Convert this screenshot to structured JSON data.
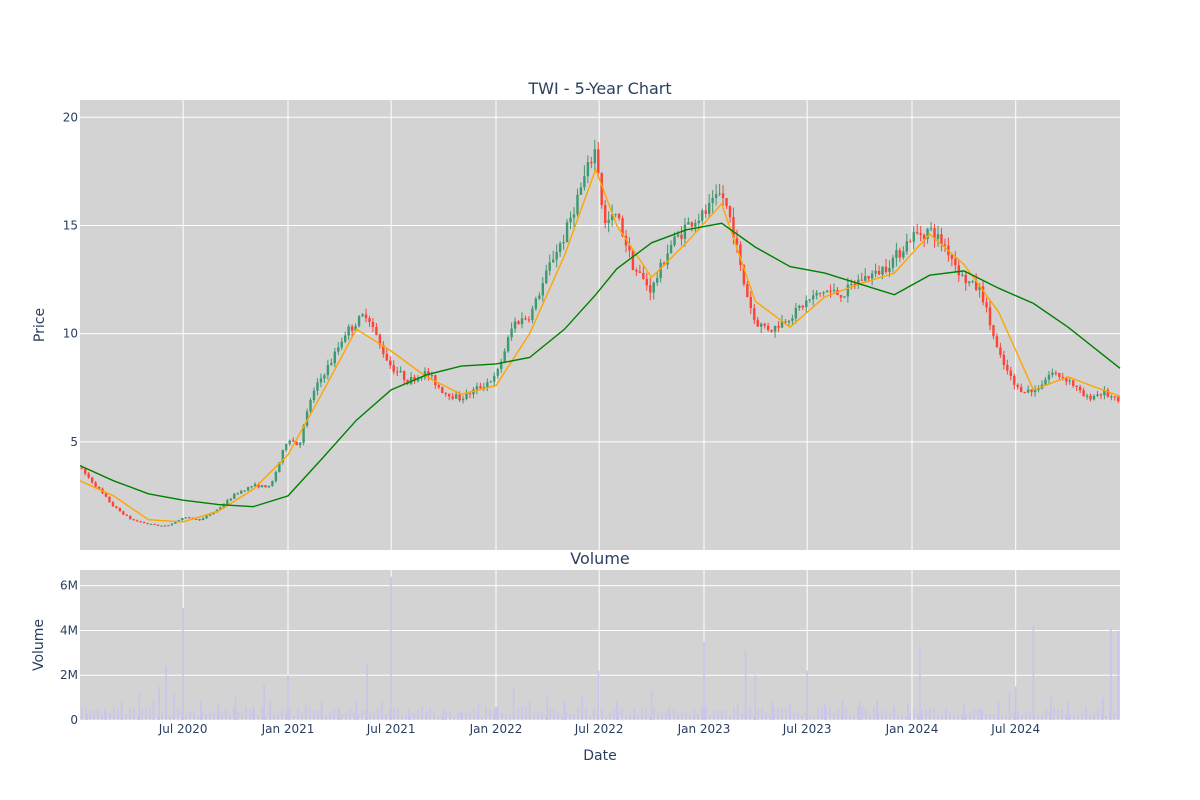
{
  "chart_data": [
    {
      "type": "candlestick",
      "title": "TWI - 5-Year Chart",
      "ylabel": "Price",
      "xlabel": "",
      "ylim": [
        0,
        20.8
      ],
      "y_ticks": [
        5,
        10,
        15,
        20
      ],
      "x_range": [
        "2020-01-02",
        "2024-12-31"
      ],
      "grid": true,
      "plot_background": "#d3d3d3",
      "colors": {
        "increasing": "#3d9970",
        "decreasing": "#ff4136",
        "ma_short": "#ffa500",
        "ma_long": "#008000"
      },
      "series": [
        {
          "name": "price",
          "x": [
            "2020-01-02",
            "2020-02-01",
            "2020-03-01",
            "2020-04-01",
            "2020-05-01",
            "2020-06-01",
            "2020-07-01",
            "2020-08-01",
            "2020-09-01",
            "2020-10-01",
            "2020-11-01",
            "2020-12-01",
            "2021-01-01",
            "2021-01-20",
            "2021-02-10",
            "2021-03-01",
            "2021-03-20",
            "2021-04-10",
            "2021-05-01",
            "2021-05-20",
            "2021-06-10",
            "2021-07-01",
            "2021-08-01",
            "2021-09-01",
            "2021-10-01",
            "2021-11-01",
            "2021-12-01",
            "2022-01-01",
            "2022-02-01",
            "2022-03-01",
            "2022-03-20",
            "2022-04-10",
            "2022-05-01",
            "2022-05-20",
            "2022-06-10",
            "2022-06-25",
            "2022-07-10",
            "2022-08-01",
            "2022-09-01",
            "2022-10-01",
            "2022-11-01",
            "2022-12-01",
            "2023-01-01",
            "2023-02-01",
            "2023-02-20",
            "2023-03-10",
            "2023-04-01",
            "2023-05-01",
            "2023-06-01",
            "2023-07-01",
            "2023-08-01",
            "2023-09-01",
            "2023-10-01",
            "2023-11-01",
            "2023-12-01",
            "2024-01-01",
            "2024-02-01",
            "2024-03-01",
            "2024-04-01",
            "2024-05-01",
            "2024-06-01",
            "2024-07-01",
            "2024-08-01",
            "2024-09-01",
            "2024-10-01",
            "2024-11-01",
            "2024-12-01",
            "2024-12-31"
          ],
          "close": [
            3.8,
            2.9,
            2.0,
            1.4,
            1.2,
            1.1,
            1.5,
            1.4,
            1.9,
            2.6,
            3.0,
            2.9,
            5.2,
            4.8,
            7.0,
            8.0,
            8.8,
            10.0,
            10.5,
            11.0,
            9.5,
            8.5,
            7.8,
            8.2,
            7.3,
            7.0,
            7.5,
            8.0,
            10.5,
            10.8,
            12.0,
            13.5,
            14.5,
            16.0,
            17.5,
            18.6,
            15.0,
            15.5,
            13.0,
            12.0,
            14.0,
            15.0,
            15.5,
            16.5,
            15.0,
            12.5,
            10.5,
            10.2,
            10.8,
            11.5,
            12.0,
            11.8,
            12.5,
            12.8,
            13.5,
            14.5,
            14.8,
            14.0,
            12.5,
            12.0,
            9.0,
            7.5,
            7.3,
            8.2,
            7.9,
            7.0,
            7.3,
            6.8
          ]
        },
        {
          "name": "ma_short",
          "x": [
            "2020-01-02",
            "2020-03-01",
            "2020-05-01",
            "2020-07-01",
            "2020-09-01",
            "2020-11-01",
            "2021-01-01",
            "2021-03-01",
            "2021-05-01",
            "2021-07-01",
            "2021-09-01",
            "2021-11-01",
            "2022-01-01",
            "2022-03-01",
            "2022-05-01",
            "2022-06-25",
            "2022-08-01",
            "2022-10-01",
            "2022-12-01",
            "2023-02-01",
            "2023-04-01",
            "2023-06-01",
            "2023-08-01",
            "2023-10-01",
            "2023-12-01",
            "2024-02-01",
            "2024-04-01",
            "2024-06-01",
            "2024-08-01",
            "2024-10-01",
            "2024-12-31"
          ],
          "values": [
            3.2,
            2.5,
            1.4,
            1.3,
            1.8,
            2.8,
            4.4,
            7.2,
            10.2,
            9.2,
            8.0,
            7.2,
            7.6,
            10.0,
            13.6,
            17.6,
            15.0,
            12.6,
            14.2,
            16.0,
            11.5,
            10.3,
            11.7,
            12.3,
            12.8,
            14.6,
            13.2,
            11.0,
            7.4,
            8.0,
            7.1
          ]
        },
        {
          "name": "ma_long",
          "x": [
            "2020-01-02",
            "2020-03-01",
            "2020-05-01",
            "2020-07-01",
            "2020-09-01",
            "2020-11-01",
            "2021-01-01",
            "2021-03-01",
            "2021-05-01",
            "2021-07-01",
            "2021-09-01",
            "2021-11-01",
            "2022-01-01",
            "2022-03-01",
            "2022-05-01",
            "2022-06-25",
            "2022-08-01",
            "2022-10-01",
            "2022-12-01",
            "2023-02-01",
            "2023-04-01",
            "2023-06-01",
            "2023-08-01",
            "2023-10-01",
            "2023-12-01",
            "2024-02-01",
            "2024-04-01",
            "2024-06-01",
            "2024-08-01",
            "2024-10-01",
            "2024-12-31"
          ],
          "values": [
            3.9,
            3.2,
            2.6,
            2.3,
            2.1,
            2.0,
            2.5,
            4.2,
            6.0,
            7.4,
            8.1,
            8.5,
            8.6,
            8.9,
            10.2,
            11.8,
            13.0,
            14.2,
            14.8,
            15.1,
            14.0,
            13.1,
            12.8,
            12.3,
            11.8,
            12.7,
            12.9,
            12.1,
            11.4,
            10.3,
            8.4
          ]
        }
      ]
    },
    {
      "type": "bar",
      "title": "Volume",
      "ylabel": "Volume",
      "xlabel": "Date",
      "ylim": [
        0,
        6700000
      ],
      "y_ticks": [
        0,
        2000000,
        4000000,
        6000000
      ],
      "y_tick_labels": [
        "0",
        "2M",
        "4M",
        "6M"
      ],
      "x_range": [
        "2020-01-02",
        "2024-12-31"
      ],
      "x_ticks": [
        "2020-07-01",
        "2021-01-01",
        "2021-07-01",
        "2022-01-01",
        "2022-07-01",
        "2023-01-01",
        "2023-07-01",
        "2024-01-01",
        "2024-07-01"
      ],
      "x_tick_labels": [
        "Jul 2020",
        "Jan 2021",
        "Jul 2021",
        "Jan 2022",
        "Jul 2022",
        "Jan 2023",
        "Jul 2023",
        "Jan 2024",
        "Jul 2024"
      ],
      "grid": true,
      "plot_background": "#d3d3d3",
      "bar_color": "#c8c4ee",
      "series": [
        {
          "name": "volume",
          "x": [
            "2020-01-15",
            "2020-02-15",
            "2020-03-15",
            "2020-04-15",
            "2020-05-10",
            "2020-05-20",
            "2020-06-01",
            "2020-06-15",
            "2020-07-01",
            "2020-08-01",
            "2020-09-01",
            "2020-10-01",
            "2020-11-01",
            "2020-11-20",
            "2020-12-01",
            "2021-01-01",
            "2021-02-01",
            "2021-03-01",
            "2021-04-01",
            "2021-05-01",
            "2021-05-20",
            "2021-06-15",
            "2021-07-01",
            "2021-08-01",
            "2021-09-01",
            "2021-10-01",
            "2021-11-01",
            "2021-12-01",
            "2022-01-01",
            "2022-02-01",
            "2022-03-01",
            "2022-04-01",
            "2022-05-01",
            "2022-06-01",
            "2022-06-30",
            "2022-08-01",
            "2022-09-01",
            "2022-10-01",
            "2022-11-01",
            "2022-12-15",
            "2023-01-01",
            "2023-02-01",
            "2023-03-01",
            "2023-03-15",
            "2023-04-01",
            "2023-05-01",
            "2023-06-01",
            "2023-07-01",
            "2023-08-01",
            "2023-09-01",
            "2023-10-01",
            "2023-11-01",
            "2023-12-01",
            "2023-12-25",
            "2024-01-15",
            "2024-02-01",
            "2024-03-01",
            "2024-04-01",
            "2024-05-01",
            "2024-06-01",
            "2024-06-20",
            "2024-07-01",
            "2024-08-01",
            "2024-09-01",
            "2024-10-01",
            "2024-11-01",
            "2024-12-01",
            "2024-12-15",
            "2024-12-28"
          ],
          "values": [
            300000,
            500000,
            900000,
            1200000,
            900000,
            1500000,
            2400000,
            1200000,
            5000000,
            900000,
            700000,
            1100000,
            500000,
            1600000,
            800000,
            2000000,
            700000,
            900000,
            600000,
            900000,
            2500000,
            800000,
            6400000,
            500000,
            400000,
            500000,
            400000,
            700000,
            600000,
            1400000,
            800000,
            1100000,
            900000,
            1000000,
            2200000,
            800000,
            500000,
            1300000,
            600000,
            500000,
            3500000,
            400000,
            700000,
            3100000,
            2000000,
            800000,
            700000,
            2200000,
            700000,
            900000,
            800000,
            900000,
            600000,
            700000,
            3300000,
            500000,
            400000,
            700000,
            500000,
            800000,
            1200000,
            1500000,
            4200000,
            1000000,
            800000,
            600000,
            1000000,
            4100000,
            4000000
          ]
        }
      ]
    }
  ]
}
